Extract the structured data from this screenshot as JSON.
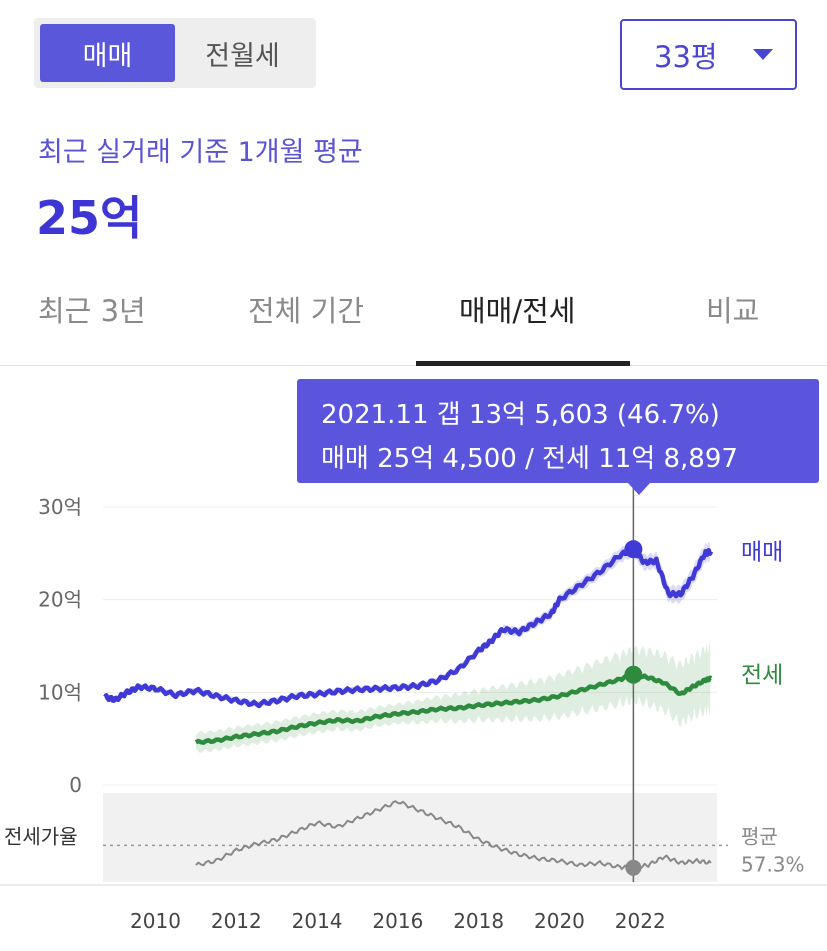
{
  "toggle": {
    "options": [
      "매매",
      "전월세"
    ],
    "selected": "매매"
  },
  "size_select": {
    "value": "33평"
  },
  "summary": {
    "subtitle": "최근 실거래 기준 1개월 평균",
    "price": "25억"
  },
  "tabs": [
    {
      "label": "최근 3년",
      "active": false
    },
    {
      "label": "전체 기간",
      "active": false
    },
    {
      "label": "매매/전세",
      "active": true
    },
    {
      "label": "비교",
      "active": false
    }
  ],
  "tooltip": {
    "line1": "2021.11  갭 13억 5,603 (46.7%)",
    "line2": "매매 25억 4,500 / 전세 11억 8,897"
  },
  "colors": {
    "accent": "#4a46d1",
    "sale": "#3f39d6",
    "jeonse": "#2e8b3e",
    "ratio": "#888888"
  },
  "chart_data": {
    "type": "line",
    "x_unit": "year",
    "xlim": [
      2008.7,
      2023.9
    ],
    "ylim": [
      0,
      30
    ],
    "y_ticks": [
      {
        "value": 0,
        "label": "0"
      },
      {
        "value": 10,
        "label": "10억"
      },
      {
        "value": 20,
        "label": "20억"
      },
      {
        "value": 30,
        "label": "30억"
      }
    ],
    "x_ticks": [
      "2010",
      "2012",
      "2014",
      "2016",
      "2018",
      "2020",
      "2022"
    ],
    "grid": true,
    "series": [
      {
        "name": "매매",
        "x": [
          2008.75,
          2009.0,
          2009.3,
          2009.6,
          2010.0,
          2010.5,
          2011.0,
          2011.5,
          2012.0,
          2012.5,
          2013.0,
          2013.5,
          2014.0,
          2014.5,
          2015.0,
          2015.5,
          2016.0,
          2016.5,
          2017.0,
          2017.5,
          2018.0,
          2018.3,
          2018.6,
          2019.0,
          2019.4,
          2019.8,
          2020.0,
          2020.5,
          2021.0,
          2021.5,
          2021.83,
          2022.1,
          2022.4,
          2022.7,
          2023.0,
          2023.3,
          2023.6,
          2023.75
        ],
        "y": [
          9.5,
          9.2,
          10.0,
          10.6,
          10.4,
          9.7,
          10.2,
          9.6,
          9.1,
          8.7,
          9.1,
          9.6,
          9.8,
          10.1,
          10.3,
          10.4,
          10.5,
          10.7,
          11.3,
          12.5,
          14.5,
          15.5,
          16.8,
          16.5,
          17.5,
          18.5,
          20.0,
          21.5,
          23.0,
          24.8,
          25.45,
          24.0,
          24.2,
          20.6,
          20.6,
          22.5,
          25.0,
          25.2
        ]
      },
      {
        "name": "전세",
        "x": [
          2011.0,
          2011.5,
          2012.0,
          2012.5,
          2013.0,
          2013.5,
          2014.0,
          2014.5,
          2015.0,
          2015.5,
          2016.0,
          2016.5,
          2017.0,
          2017.5,
          2018.0,
          2018.5,
          2019.0,
          2019.5,
          2020.0,
          2020.5,
          2021.0,
          2021.5,
          2021.83,
          2022.2,
          2022.6,
          2023.0,
          2023.3,
          2023.6,
          2023.75
        ],
        "y": [
          4.6,
          4.8,
          5.2,
          5.5,
          5.8,
          6.3,
          6.7,
          7.0,
          6.9,
          7.4,
          7.7,
          7.9,
          8.2,
          8.3,
          8.6,
          8.8,
          9.0,
          9.2,
          9.6,
          10.2,
          10.8,
          11.4,
          11.9,
          11.6,
          11.0,
          9.8,
          10.6,
          11.3,
          11.5
        ]
      },
      {
        "name": "전세가율",
        "x": [
          2011.0,
          2011.5,
          2012.0,
          2012.5,
          2013.0,
          2013.5,
          2014.0,
          2014.5,
          2015.0,
          2015.5,
          2016.0,
          2016.5,
          2017.0,
          2017.5,
          2018.0,
          2018.5,
          2019.0,
          2019.5,
          2020.0,
          2020.5,
          2021.0,
          2021.5,
          2021.83,
          2022.2,
          2022.6,
          2023.0,
          2023.4,
          2023.75
        ],
        "y": [
          48,
          50,
          55,
          58,
          60,
          64,
          68,
          66,
          70,
          74,
          78,
          74,
          70,
          66,
          60,
          56,
          53,
          51,
          50,
          48,
          49,
          47,
          46.7,
          48,
          52,
          49,
          50,
          49
        ]
      }
    ],
    "ratio_reference": {
      "label_top": "평균",
      "label_bottom": "57.3%",
      "value": 57.3
    },
    "ratio_label": "전세가율",
    "marker": {
      "x": 2021.83
    }
  }
}
